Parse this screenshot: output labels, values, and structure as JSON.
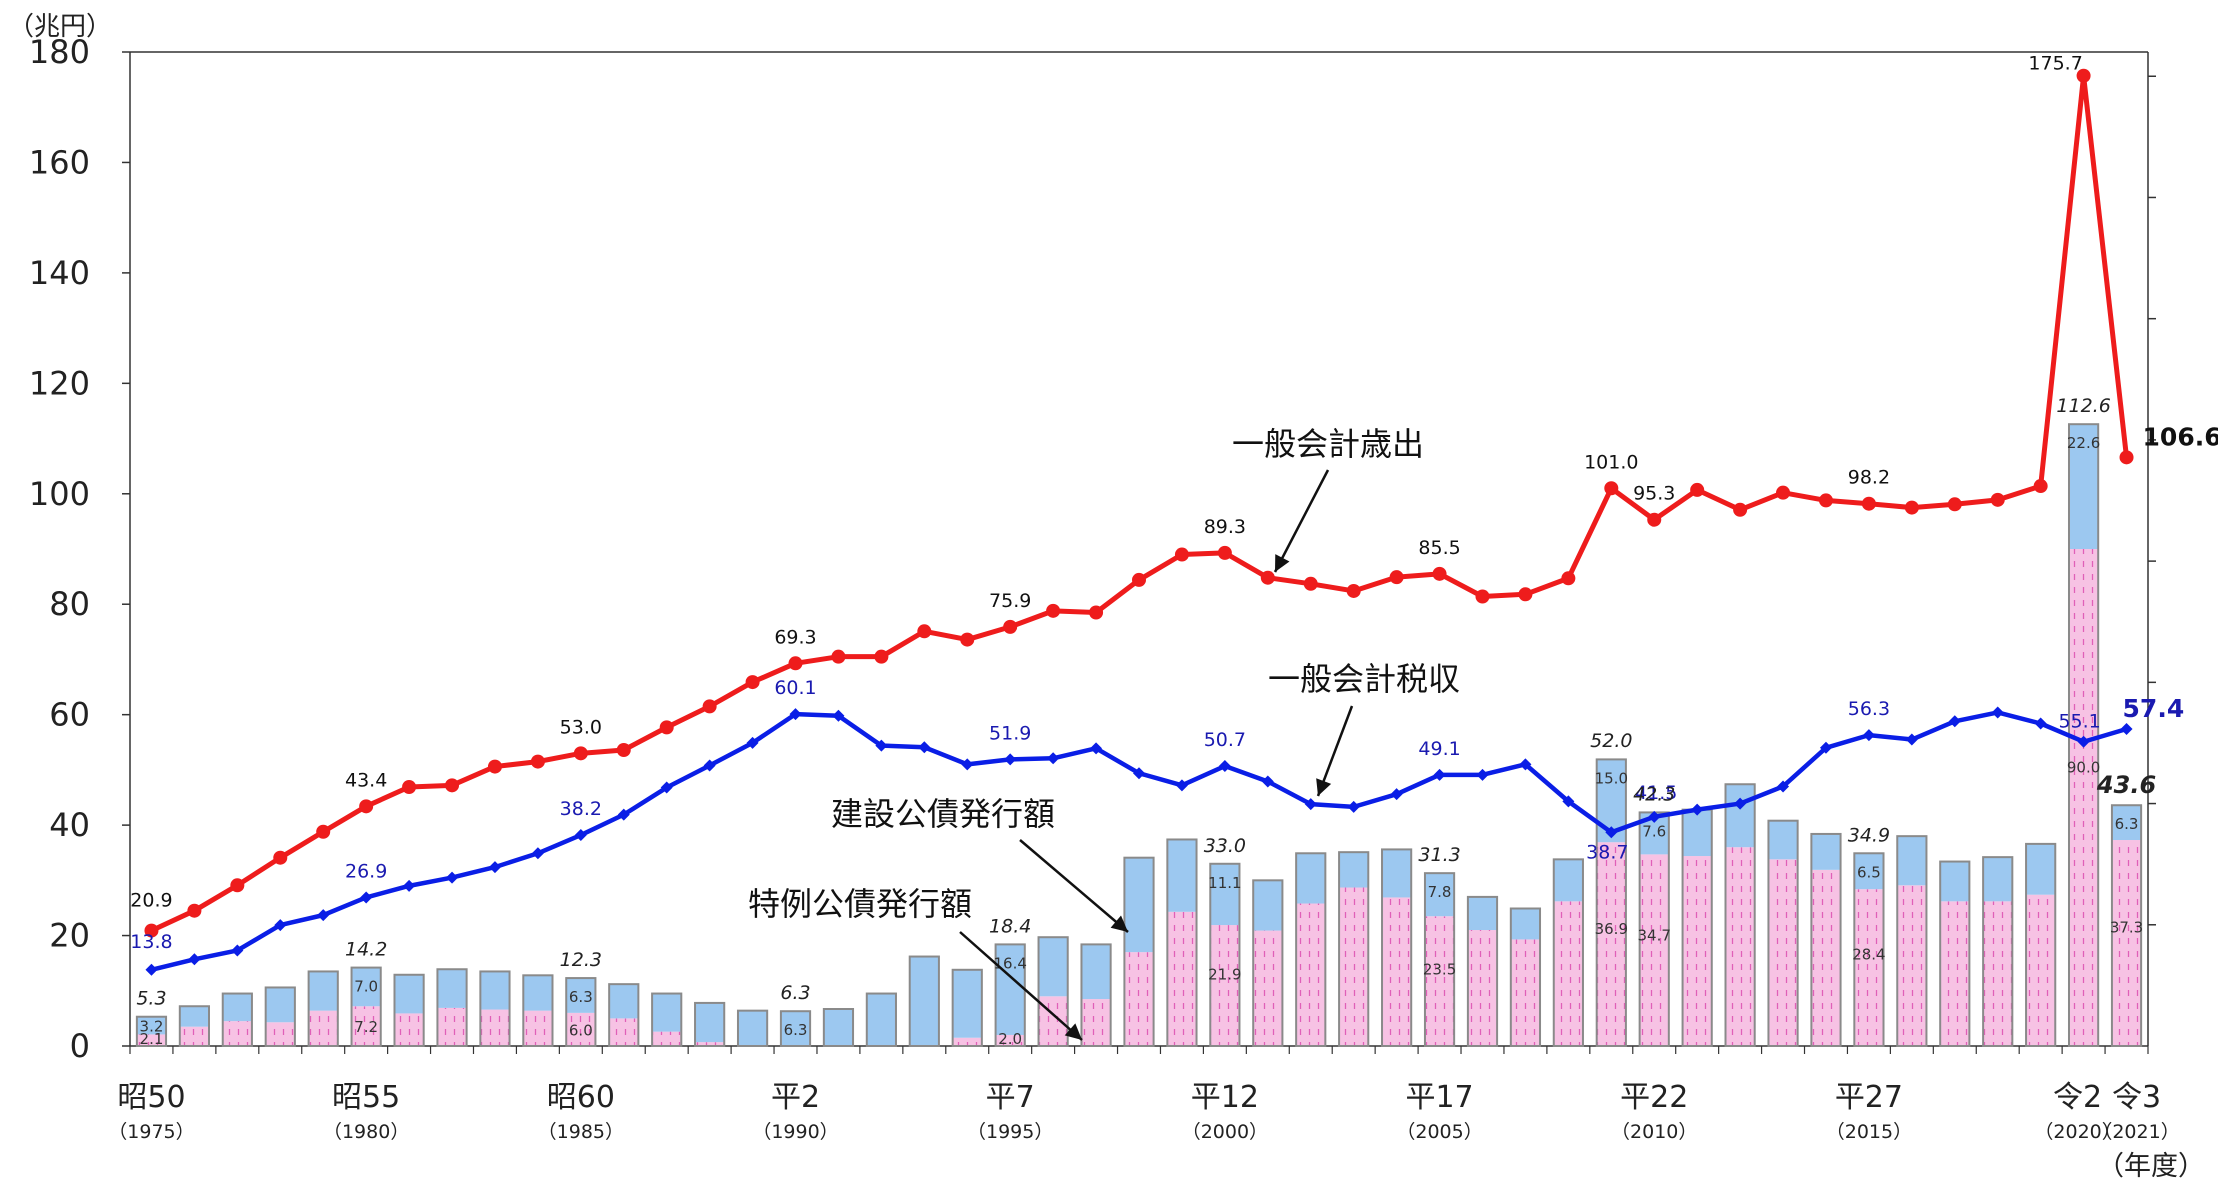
{
  "chart_data": {
    "type": "bar+line",
    "y_unit": "（兆円）",
    "x_unit": "（年度）",
    "ylim": [
      0,
      180
    ],
    "yticks": [
      0,
      20,
      40,
      60,
      80,
      100,
      120,
      140,
      160,
      180
    ],
    "years": [
      1975,
      1976,
      1977,
      1978,
      1979,
      1980,
      1981,
      1982,
      1983,
      1984,
      1985,
      1986,
      1987,
      1988,
      1989,
      1990,
      1991,
      1992,
      1993,
      1994,
      1995,
      1996,
      1997,
      1998,
      1999,
      2000,
      2001,
      2002,
      2003,
      2004,
      2005,
      2006,
      2007,
      2008,
      2009,
      2010,
      2011,
      2012,
      2013,
      2014,
      2015,
      2016,
      2017,
      2018,
      2019,
      2020,
      2021
    ],
    "x_ticks": [
      {
        "year": 1975,
        "era": "昭50",
        "ad": "（1975）"
      },
      {
        "year": 1980,
        "era": "昭55",
        "ad": "（1980）"
      },
      {
        "year": 1985,
        "era": "昭60",
        "ad": "（1985）"
      },
      {
        "year": 1990,
        "era": "平2",
        "ad": "（1990）"
      },
      {
        "year": 1995,
        "era": "平7",
        "ad": "（1995）"
      },
      {
        "year": 2000,
        "era": "平12",
        "ad": "（2000）"
      },
      {
        "year": 2005,
        "era": "平17",
        "ad": "（2005）"
      },
      {
        "year": 2010,
        "era": "平22",
        "ad": "（2010）"
      },
      {
        "year": 2015,
        "era": "平27",
        "ad": "（2015）"
      },
      {
        "year": 2020,
        "era": "令2",
        "ad": "（2020）"
      },
      {
        "year": 2021,
        "era": "令3",
        "ad": "（2021）"
      }
    ],
    "series": [
      {
        "name": "一般会計歳出",
        "kind": "line",
        "color": "#ee1c1c",
        "values": [
          20.9,
          24.5,
          29.1,
          34.1,
          38.8,
          43.4,
          46.9,
          47.2,
          50.6,
          51.5,
          53.0,
          53.6,
          57.7,
          61.5,
          65.9,
          69.3,
          70.5,
          70.5,
          75.1,
          73.6,
          75.9,
          78.8,
          78.5,
          84.4,
          89.0,
          89.3,
          84.8,
          83.7,
          82.4,
          84.9,
          85.5,
          81.4,
          81.8,
          84.7,
          101.0,
          95.3,
          100.7,
          97.1,
          100.2,
          98.8,
          98.2,
          97.5,
          98.1,
          98.9,
          101.4,
          175.7,
          106.6
        ]
      },
      {
        "name": "一般会計税収",
        "kind": "line",
        "color": "#0a1ee6",
        "values": [
          13.8,
          15.7,
          17.3,
          21.9,
          23.7,
          26.9,
          29.0,
          30.5,
          32.4,
          34.9,
          38.2,
          41.9,
          46.8,
          50.8,
          54.9,
          60.1,
          59.8,
          54.4,
          54.1,
          51.0,
          51.9,
          52.1,
          53.9,
          49.4,
          47.2,
          50.7,
          47.9,
          43.8,
          43.3,
          45.6,
          49.1,
          49.1,
          51.0,
          44.3,
          38.7,
          41.5,
          42.8,
          43.9,
          47.0,
          54.0,
          56.3,
          55.5,
          58.8,
          60.4,
          58.4,
          55.1,
          57.4
        ]
      },
      {
        "name": "建設公債発行額",
        "kind": "bar",
        "color": "#9cc8f0",
        "values": [
          3.2,
          3.7,
          5.0,
          6.3,
          7.1,
          7.0,
          7.0,
          7.0,
          6.9,
          6.4,
          6.3,
          6.2,
          6.9,
          7.1,
          6.4,
          6.3,
          6.7,
          9.5,
          16.2,
          12.3,
          16.4,
          10.7,
          9.9,
          17.1,
          13.1,
          11.1,
          9.1,
          9.1,
          6.4,
          8.7,
          7.8,
          6.0,
          5.6,
          7.6,
          15.0,
          7.6,
          8.4,
          11.4,
          7.0,
          6.5,
          6.5,
          8.9,
          7.2,
          8.0,
          9.2,
          22.6,
          6.3
        ]
      },
      {
        "name": "特例公債発行額",
        "kind": "bar",
        "color": "#f7c2e4",
        "values": [
          2.1,
          3.5,
          4.5,
          4.3,
          6.4,
          7.2,
          5.9,
          6.9,
          6.6,
          6.4,
          6.0,
          5.0,
          2.6,
          0.7,
          0.0,
          0.0,
          0.0,
          0.0,
          0.0,
          1.5,
          2.0,
          9.0,
          8.5,
          17.0,
          24.3,
          21.9,
          20.9,
          25.8,
          28.7,
          26.9,
          23.5,
          21.0,
          19.3,
          26.2,
          36.9,
          34.7,
          34.4,
          36.0,
          33.8,
          31.9,
          28.4,
          29.1,
          26.2,
          26.2,
          27.4,
          90.0,
          37.3
        ]
      }
    ],
    "bar_totals": [
      5.3,
      7.2,
      9.5,
      10.6,
      13.5,
      14.2,
      12.9,
      13.9,
      13.5,
      12.8,
      12.3,
      11.2,
      9.5,
      7.8,
      6.4,
      6.3,
      6.7,
      9.5,
      16.2,
      13.8,
      18.4,
      19.7,
      18.4,
      34.1,
      37.4,
      33.0,
      30.0,
      34.9,
      35.1,
      35.6,
      31.3,
      27.0,
      24.9,
      33.8,
      52.0,
      42.3,
      42.8,
      47.4,
      40.8,
      38.4,
      34.9,
      38.0,
      33.4,
      34.2,
      36.6,
      112.6,
      43.6
    ],
    "line_labels": [
      {
        "series": 0,
        "index": 0,
        "text": "20.9"
      },
      {
        "series": 0,
        "index": 5,
        "text": "43.4"
      },
      {
        "series": 0,
        "index": 10,
        "text": "53.0"
      },
      {
        "series": 0,
        "index": 15,
        "text": "69.3"
      },
      {
        "series": 0,
        "index": 20,
        "text": "75.9"
      },
      {
        "series": 0,
        "index": 25,
        "text": "89.3"
      },
      {
        "series": 0,
        "index": 30,
        "text": "85.5"
      },
      {
        "series": 0,
        "index": 34,
        "text": "101.0"
      },
      {
        "series": 0,
        "index": 35,
        "text": "95.3"
      },
      {
        "series": 0,
        "index": 40,
        "text": "98.2"
      },
      {
        "series": 0,
        "index": 45,
        "text": "175.7"
      },
      {
        "series": 0,
        "index": 46,
        "text": "106.6",
        "bold": true
      },
      {
        "series": 1,
        "index": 0,
        "text": "13.8"
      },
      {
        "series": 1,
        "index": 5,
        "text": "26.9"
      },
      {
        "series": 1,
        "index": 10,
        "text": "38.2"
      },
      {
        "series": 1,
        "index": 15,
        "text": "60.1"
      },
      {
        "series": 1,
        "index": 20,
        "text": "51.9"
      },
      {
        "series": 1,
        "index": 25,
        "text": "50.7"
      },
      {
        "series": 1,
        "index": 30,
        "text": "49.1"
      },
      {
        "series": 1,
        "index": 34,
        "text": "38.7"
      },
      {
        "series": 1,
        "index": 35,
        "text": "41.5"
      },
      {
        "series": 1,
        "index": 40,
        "text": "56.3"
      },
      {
        "series": 1,
        "index": 45,
        "text": "55.1"
      },
      {
        "series": 1,
        "index": 46,
        "text": "57.4",
        "bold": true
      }
    ],
    "bar_total_labels": [
      {
        "index": 0,
        "text": "5.3"
      },
      {
        "index": 5,
        "text": "14.2"
      },
      {
        "index": 10,
        "text": "12.3"
      },
      {
        "index": 15,
        "text": "6.3"
      },
      {
        "index": 20,
        "text": "18.4"
      },
      {
        "index": 25,
        "text": "33.0"
      },
      {
        "index": 30,
        "text": "31.3"
      },
      {
        "index": 34,
        "text": "52.0"
      },
      {
        "index": 35,
        "text": "42.3"
      },
      {
        "index": 40,
        "text": "34.9"
      },
      {
        "index": 45,
        "text": "112.6"
      },
      {
        "index": 46,
        "text": "43.6",
        "bold": true
      }
    ],
    "bar_inner_labels": [
      {
        "index": 0,
        "part": "construction",
        "text": "3.2"
      },
      {
        "index": 0,
        "part": "special",
        "text": "2.1"
      },
      {
        "index": 5,
        "part": "construction",
        "text": "7.0"
      },
      {
        "index": 5,
        "part": "special",
        "text": "7.2"
      },
      {
        "index": 10,
        "part": "construction",
        "text": "6.3"
      },
      {
        "index": 10,
        "part": "special",
        "text": "6.0"
      },
      {
        "index": 15,
        "part": "construction",
        "text": "6.3"
      },
      {
        "index": 20,
        "part": "construction",
        "text": "16.4"
      },
      {
        "index": 20,
        "part": "special",
        "text": "2.0"
      },
      {
        "index": 25,
        "part": "construction",
        "text": "11.1"
      },
      {
        "index": 25,
        "part": "special",
        "text": "21.9"
      },
      {
        "index": 30,
        "part": "construction",
        "text": "7.8"
      },
      {
        "index": 30,
        "part": "special",
        "text": "23.5"
      },
      {
        "index": 34,
        "part": "construction",
        "text": "15.0"
      },
      {
        "index": 34,
        "part": "special",
        "text": "36.9"
      },
      {
        "index": 35,
        "part": "construction",
        "text": "7.6"
      },
      {
        "index": 35,
        "part": "special",
        "text": "34.7"
      },
      {
        "index": 40,
        "part": "construction",
        "text": "6.5"
      },
      {
        "index": 40,
        "part": "special",
        "text": "28.4"
      },
      {
        "index": 45,
        "part": "construction",
        "text": "22.6"
      },
      {
        "index": 45,
        "part": "special",
        "text": "90.0"
      },
      {
        "index": 46,
        "part": "construction",
        "text": "6.3"
      },
      {
        "index": 46,
        "part": "special",
        "text": "37.3"
      }
    ],
    "annotations": [
      {
        "text": "一般会計歳出",
        "target_series": 0
      },
      {
        "text": "一般会計税収",
        "target_series": 1
      },
      {
        "text": "建設公債発行額",
        "target_series": 2
      },
      {
        "text": "特例公債発行額",
        "target_series": 3
      }
    ],
    "grid": false,
    "legend": "none"
  }
}
